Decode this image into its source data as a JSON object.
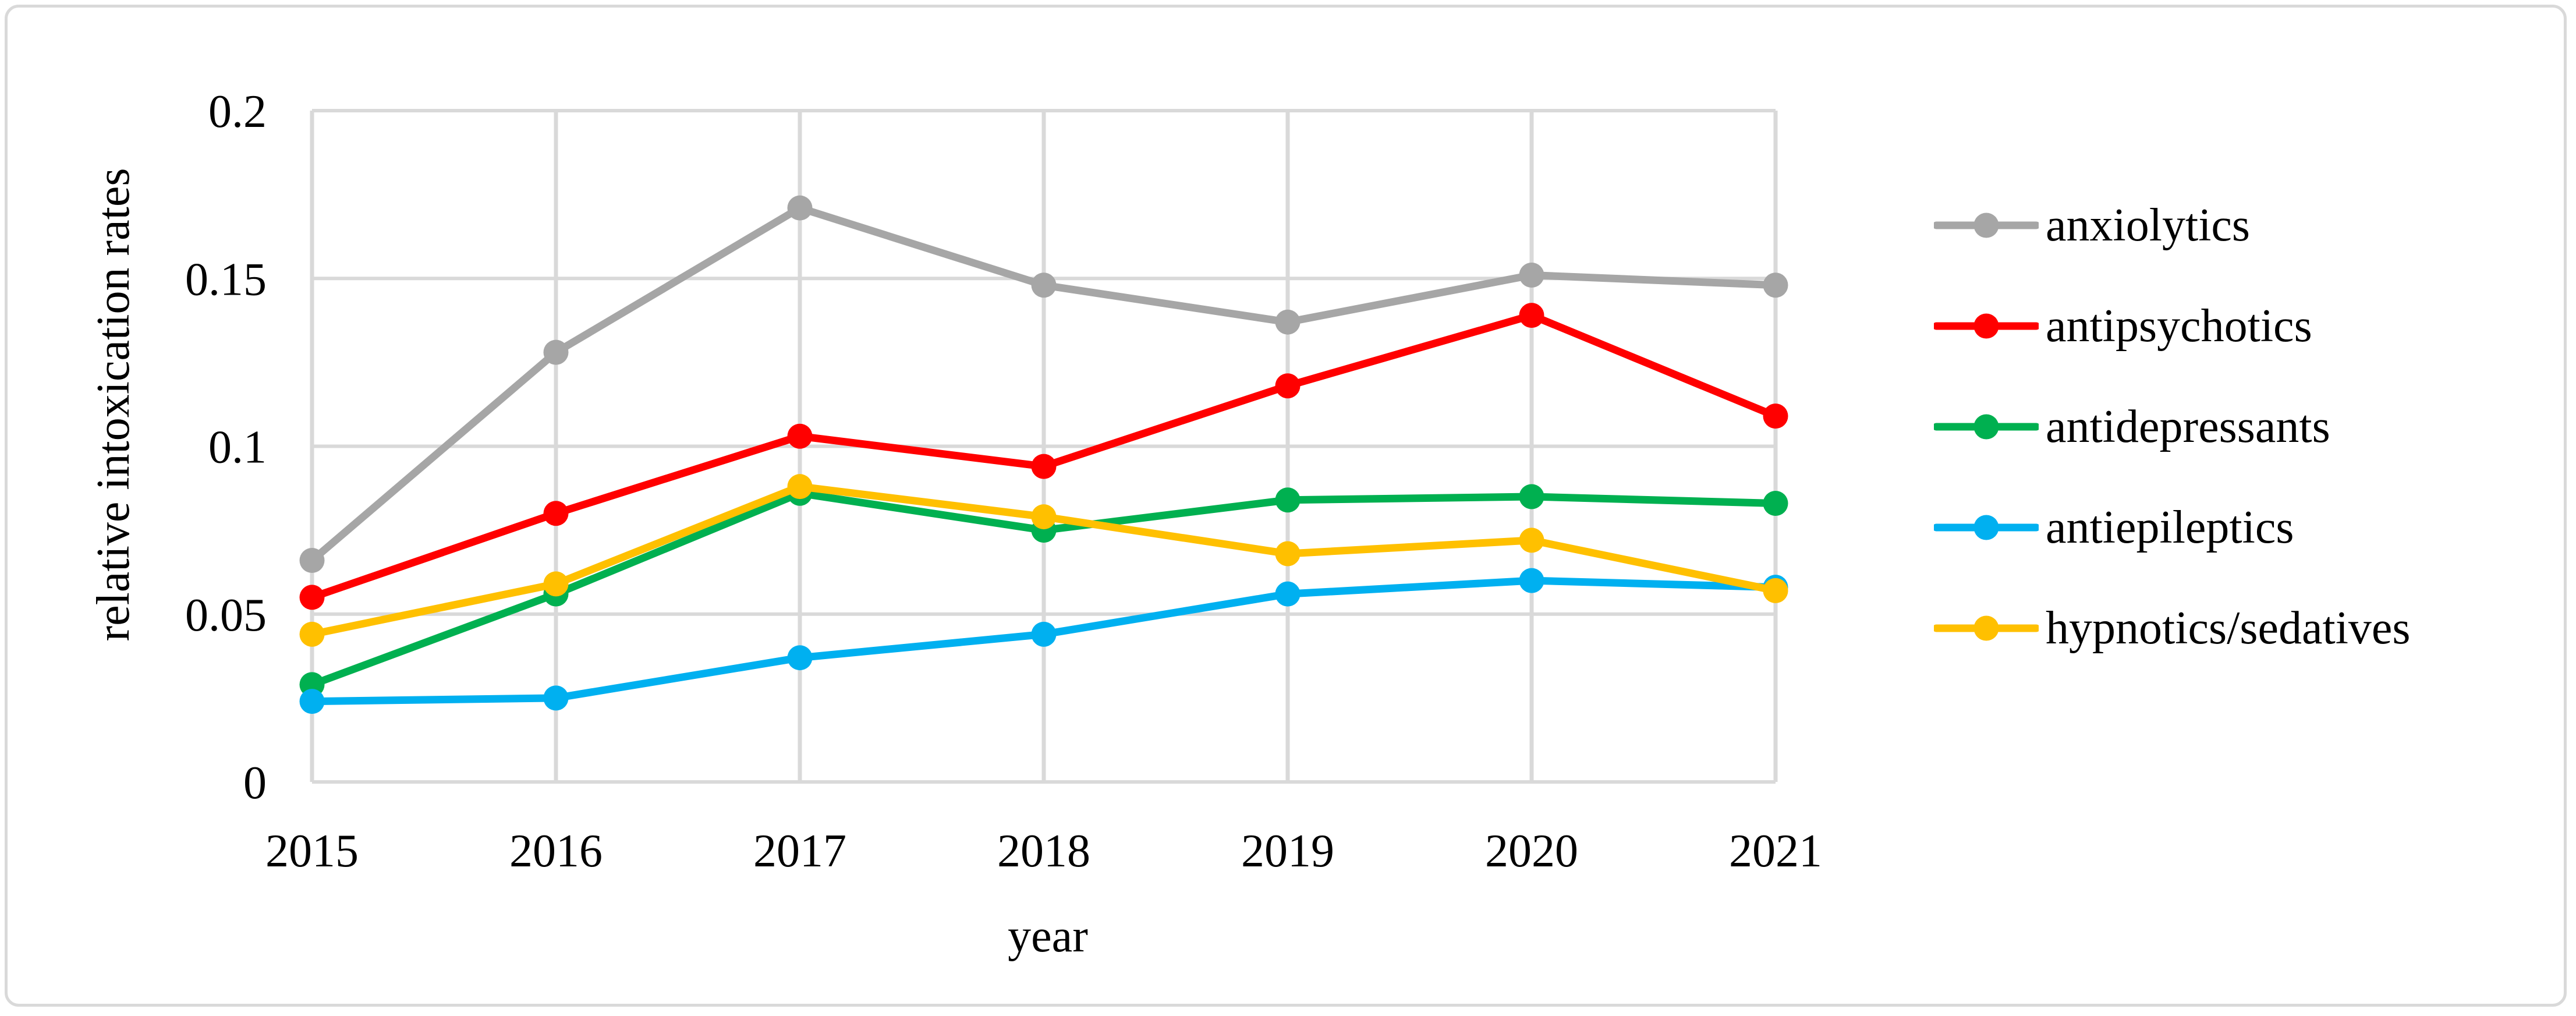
{
  "figure": {
    "background_color": "#ffffff",
    "border_color": "#d9d9d9"
  },
  "chart_data": {
    "type": "line",
    "title": "",
    "xlabel": "year",
    "ylabel": "relative intoxication rates",
    "categories": [
      "2015",
      "2016",
      "2017",
      "2018",
      "2019",
      "2020",
      "2021"
    ],
    "series": [
      {
        "name": "anxiolytics",
        "color": "#a6a6a6",
        "values": [
          0.066,
          0.128,
          0.171,
          0.148,
          0.137,
          0.151,
          0.148
        ]
      },
      {
        "name": "antipsychotics",
        "color": "#ff0000",
        "values": [
          0.055,
          0.08,
          0.103,
          0.094,
          0.118,
          0.139,
          0.109
        ]
      },
      {
        "name": "antidepressants",
        "color": "#00b050",
        "values": [
          0.029,
          0.056,
          0.086,
          0.075,
          0.084,
          0.085,
          0.083
        ]
      },
      {
        "name": "antiepileptics",
        "color": "#00b0f0",
        "values": [
          0.024,
          0.025,
          0.037,
          0.044,
          0.056,
          0.06,
          0.058
        ]
      },
      {
        "name": "hypnotics/sedatives",
        "color": "#ffc000",
        "values": [
          0.044,
          0.059,
          0.088,
          0.079,
          0.068,
          0.072,
          0.057
        ]
      }
    ],
    "ylim": [
      0,
      0.2
    ],
    "yticks": [
      0,
      0.05,
      0.1,
      0.15,
      0.2
    ],
    "ytick_labels": [
      "0",
      "0.05",
      "0.1",
      "0.15",
      "0.2"
    ],
    "grid": true,
    "grid_color": "#d9d9d9",
    "text_color": "#000000",
    "legend_position": "right",
    "marker": "circle"
  }
}
